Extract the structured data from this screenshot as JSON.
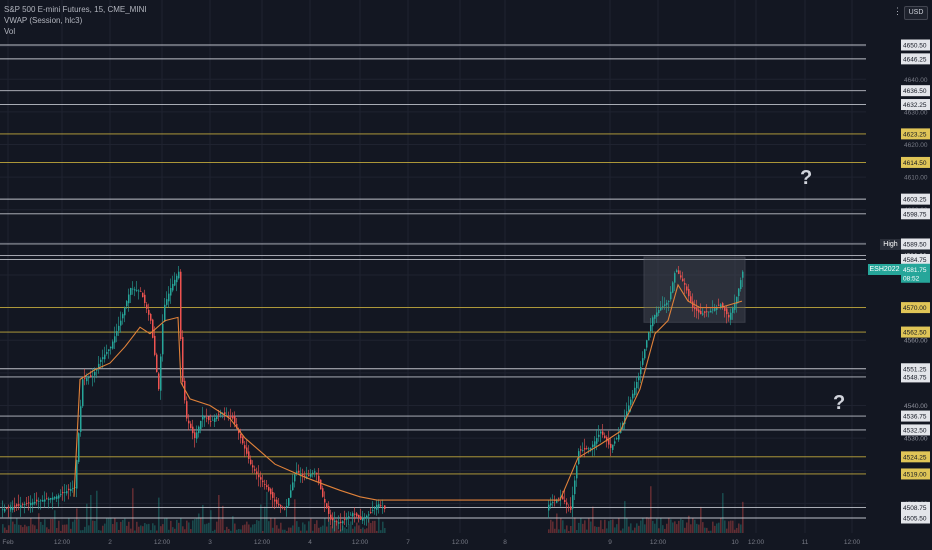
{
  "header": {
    "title": "S&P 500 E-mini Futures, 15, CME_MINI",
    "indicator_vwap": "VWAP (Session, hlc3)",
    "indicator_vol": "Vol",
    "currency_button": "USD",
    "menu_glyph": "⋮"
  },
  "badges": {
    "symbol": "ESH2022",
    "high": "High",
    "countdown": "08:52"
  },
  "annotations": {
    "q1": "?",
    "q2": "?"
  },
  "colors": {
    "background": "#131722",
    "white_level": "#d1d4dc",
    "yellow_level": "#d4b93f",
    "up": "#26a69a",
    "down": "#ef5350",
    "vwap": "#e0823a",
    "grid": "#1f2330",
    "box": "#6b6f7a"
  },
  "chart_data": {
    "type": "candlestick",
    "title": "S&P 500 E-mini Futures, 15, CME_MINI",
    "ylim": [
      4503.5,
      4652.5
    ],
    "x_ticks": [
      "Feb",
      "12:00",
      "2",
      "12:00",
      "3",
      "12:00",
      "4",
      "12:00",
      "7",
      "12:00",
      "8",
      "9",
      "12:00",
      "10",
      "12:00",
      "11",
      "12:00"
    ],
    "y_ticks": [
      4510.0,
      4520.0,
      4530.0,
      4540.0,
      4550.0,
      4560.0,
      4570.0,
      4580.0,
      4590.0,
      4600.0,
      4610.0,
      4620.0,
      4630.0,
      4640.0,
      4650.0
    ],
    "levels": [
      {
        "value": 4650.5,
        "label": "4650.50",
        "color": "white"
      },
      {
        "value": 4646.25,
        "label": "4646.25",
        "color": "white"
      },
      {
        "value": 4636.5,
        "label": "4636.50",
        "color": "white"
      },
      {
        "value": 4632.25,
        "label": "4632.25",
        "color": "white"
      },
      {
        "value": 4623.25,
        "label": "4623.25",
        "color": "yellow"
      },
      {
        "value": 4614.5,
        "label": "4614.50",
        "color": "yellow"
      },
      {
        "value": 4603.25,
        "label": "4603.25",
        "color": "white"
      },
      {
        "value": 4598.75,
        "label": "4598.75",
        "color": "white"
      },
      {
        "value": 4589.5,
        "label": "4589.50",
        "color": "white"
      },
      {
        "value": 4586.0,
        "label": "4586.00",
        "color": "high"
      },
      {
        "value": 4584.75,
        "label": "4584.75",
        "color": "white"
      },
      {
        "value": 4570.0,
        "label": "4570.00",
        "color": "yellow"
      },
      {
        "value": 4562.5,
        "label": "4562.50",
        "color": "yellow"
      },
      {
        "value": 4551.25,
        "label": "4551.25",
        "color": "white"
      },
      {
        "value": 4548.75,
        "label": "4548.75",
        "color": "white"
      },
      {
        "value": 4536.75,
        "label": "4536.75",
        "color": "white"
      },
      {
        "value": 4532.5,
        "label": "4532.50",
        "color": "white"
      },
      {
        "value": 4524.25,
        "label": "4524.25",
        "color": "yellow"
      },
      {
        "value": 4519.0,
        "label": "4519.00",
        "color": "yellow"
      },
      {
        "value": 4508.75,
        "label": "4508.75",
        "color": "white"
      },
      {
        "value": 4505.5,
        "label": "4505.50",
        "color": "white"
      }
    ],
    "last_price": {
      "value": 4581.75,
      "label": "4581.75"
    },
    "y_axis_partial_labels": [
      {
        "value": 4580.0,
        "label": "4580.00"
      },
      {
        "value": 4560.0,
        "label": "4560.00"
      },
      {
        "value": 4540.0,
        "label": "4540.00"
      },
      {
        "value": 4530.0,
        "label": "4530.00"
      }
    ],
    "box": {
      "from_x": 644,
      "to_x": 745,
      "from_y": 4585.5,
      "to_y": 4565.5
    },
    "path": [
      [
        0,
        4508
      ],
      [
        28,
        4510
      ],
      [
        55,
        4512
      ],
      [
        74,
        4515
      ],
      [
        82,
        4548
      ],
      [
        92,
        4549
      ],
      [
        100,
        4554
      ],
      [
        110,
        4558
      ],
      [
        120,
        4566
      ],
      [
        130,
        4576
      ],
      [
        140,
        4575
      ],
      [
        150,
        4566
      ],
      [
        158,
        4545
      ],
      [
        163,
        4570
      ],
      [
        170,
        4576
      ],
      [
        178,
        4581
      ],
      [
        181,
        4550
      ],
      [
        186,
        4536
      ],
      [
        194,
        4530
      ],
      [
        202,
        4537
      ],
      [
        210,
        4535
      ],
      [
        220,
        4538
      ],
      [
        232,
        4536
      ],
      [
        240,
        4530
      ],
      [
        250,
        4522
      ],
      [
        258,
        4518
      ],
      [
        266,
        4515
      ],
      [
        275,
        4510
      ],
      [
        285,
        4508
      ],
      [
        295,
        4520
      ],
      [
        305,
        4518
      ],
      [
        315,
        4520
      ],
      [
        322,
        4512
      ],
      [
        330,
        4505
      ],
      [
        340,
        4504
      ],
      [
        352,
        4507
      ],
      [
        360,
        4505
      ],
      [
        370,
        4507
      ],
      [
        377,
        4510
      ],
      [
        385,
        4508
      ],
      [
        420,
        4508
      ],
      [
        460,
        4508
      ],
      [
        500,
        4508
      ],
      [
        540,
        4508
      ],
      [
        560,
        4512
      ],
      [
        570,
        4508
      ],
      [
        578,
        4526
      ],
      [
        590,
        4527
      ],
      [
        600,
        4532
      ],
      [
        610,
        4527
      ],
      [
        618,
        4531
      ],
      [
        628,
        4540
      ],
      [
        638,
        4549
      ],
      [
        646,
        4560
      ],
      [
        652,
        4567
      ],
      [
        660,
        4570
      ],
      [
        668,
        4572
      ],
      [
        675,
        4582
      ],
      [
        684,
        4577
      ],
      [
        692,
        4570
      ],
      [
        700,
        4568
      ],
      [
        710,
        4569
      ],
      [
        720,
        4571
      ],
      [
        728,
        4567
      ],
      [
        735,
        4572
      ],
      [
        742,
        4581
      ]
    ],
    "vwap": [
      [
        74,
        4512
      ],
      [
        80,
        4548
      ],
      [
        95,
        4551
      ],
      [
        110,
        4553
      ],
      [
        125,
        4558
      ],
      [
        140,
        4564
      ],
      [
        150,
        4562
      ],
      [
        165,
        4566
      ],
      [
        178,
        4567
      ],
      [
        181,
        4547
      ],
      [
        190,
        4542
      ],
      [
        210,
        4540
      ],
      [
        230,
        4536
      ],
      [
        245,
        4530
      ],
      [
        260,
        4526
      ],
      [
        275,
        4522
      ],
      [
        290,
        4520
      ],
      [
        305,
        4518
      ],
      [
        322,
        4516
      ],
      [
        340,
        4514
      ],
      [
        360,
        4512
      ],
      [
        377,
        4511
      ],
      [
        560,
        4511
      ],
      [
        578,
        4524
      ],
      [
        600,
        4528
      ],
      [
        620,
        4532
      ],
      [
        640,
        4545
      ],
      [
        655,
        4562
      ],
      [
        668,
        4566
      ],
      [
        678,
        4577
      ],
      [
        688,
        4572
      ],
      [
        700,
        4570
      ],
      [
        720,
        4570
      ],
      [
        742,
        4572
      ]
    ]
  }
}
